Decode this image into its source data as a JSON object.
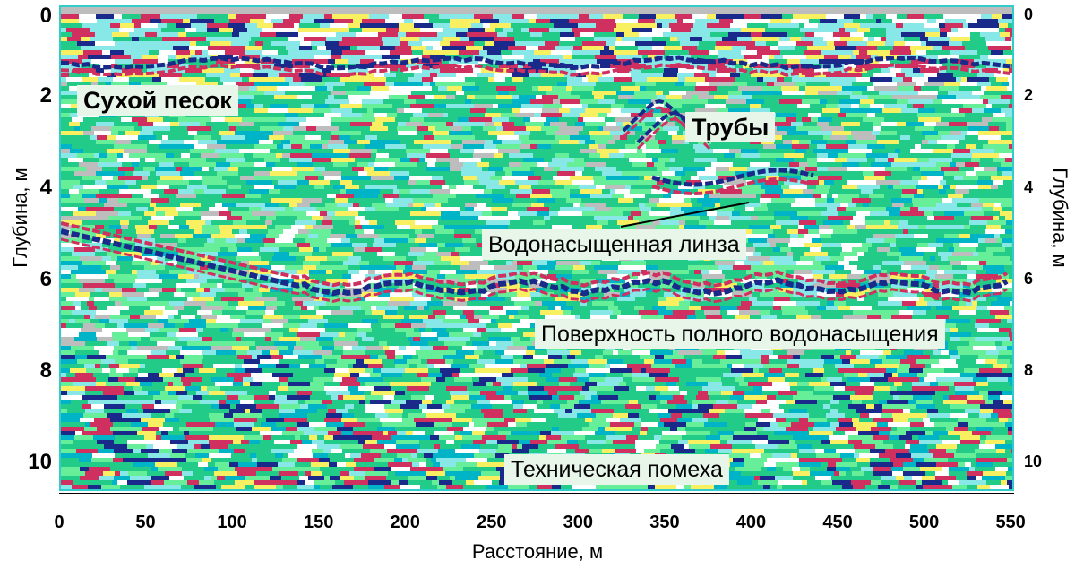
{
  "y_axis": {
    "label": "Глубина, м",
    "ticks": [
      "0",
      "2",
      "4",
      "6",
      "8",
      "10"
    ],
    "tick_values": [
      0,
      2,
      4,
      6,
      8,
      10
    ],
    "range": [
      0,
      10.6
    ]
  },
  "x_axis": {
    "label": "Расстояние, м",
    "ticks": [
      "0",
      "50",
      "100",
      "150",
      "200",
      "250",
      "300",
      "350",
      "400",
      "450",
      "500",
      "550"
    ],
    "tick_values": [
      0,
      50,
      100,
      150,
      200,
      250,
      300,
      350,
      400,
      450,
      500,
      550
    ],
    "range": [
      0,
      552
    ]
  },
  "annotations": {
    "dry_sand": "Сухой песок",
    "pipes": "Трубы",
    "water_lens": "Водонасыщенная линза",
    "saturation_surface": "Поверхность полного водонасыщения",
    "tech_noise": "Техническая помеха"
  },
  "palette": [
    "#22cc88",
    "#66ee99",
    "#00b4c8",
    "#88e8e8",
    "#d03060",
    "#f8f060",
    "#1a2a8a",
    "#bdbdbd",
    "#ffffff"
  ],
  "frame_color": "#33cccc"
}
